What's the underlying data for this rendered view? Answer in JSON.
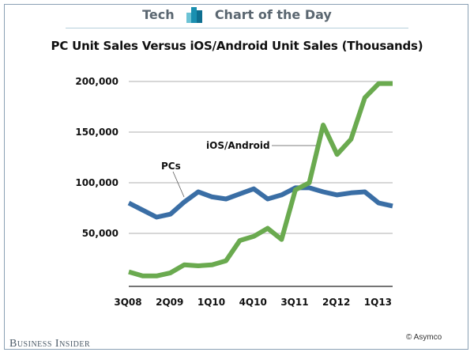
{
  "header": {
    "left": "Tech",
    "right": "Chart of the Day",
    "logo_icon": "bar-chart-icon"
  },
  "footer": {
    "brand": "Business Insider",
    "credit": "© Asymco"
  },
  "colors": {
    "pcs": "#3a6ea5",
    "ios_android": "#6aaa4f",
    "grid": "#bfbfbf",
    "frame": "#8aa0b4"
  },
  "chart_data": {
    "type": "line",
    "title": "PC Unit Sales Versus iOS/Android Unit Sales (Thousands)",
    "xlabel": "",
    "ylabel": "",
    "x": [
      "3Q08",
      "4Q08",
      "1Q09",
      "2Q09",
      "3Q09",
      "4Q09",
      "1Q10",
      "2Q10",
      "3Q10",
      "4Q10",
      "1Q11",
      "2Q11",
      "3Q11",
      "4Q11",
      "1Q12",
      "2Q12",
      "3Q12",
      "4Q12",
      "1Q13",
      "2Q13"
    ],
    "x_tick_labels": [
      "3Q08",
      "2Q09",
      "1Q10",
      "4Q10",
      "3Q11",
      "2Q12",
      "1Q13"
    ],
    "x_tick_indices": [
      0,
      3,
      6,
      9,
      12,
      15,
      18
    ],
    "y_ticks": [
      50000,
      100000,
      150000,
      200000
    ],
    "y_tick_labels": [
      "50,000",
      "100,000",
      "150,000",
      "200,000"
    ],
    "ylim": [
      0,
      200000
    ],
    "grid": true,
    "legend": "none (inline annotations)",
    "series": [
      {
        "name": "PCs",
        "label": "PCs",
        "color": "#3a6ea5",
        "values": [
          80000,
          73000,
          66000,
          69000,
          81000,
          91000,
          86000,
          84000,
          89000,
          94000,
          84000,
          88000,
          95000,
          95000,
          91000,
          88000,
          90000,
          91000,
          80000,
          77000
        ]
      },
      {
        "name": "iOS/Android",
        "label": "iOS/Android",
        "color": "#6aaa4f",
        "values": [
          12000,
          8000,
          8000,
          11000,
          19000,
          18000,
          19000,
          23000,
          43000,
          47000,
          55000,
          44000,
          93000,
          100000,
          157000,
          128000,
          143000,
          184000,
          198000,
          198000
        ]
      }
    ]
  }
}
